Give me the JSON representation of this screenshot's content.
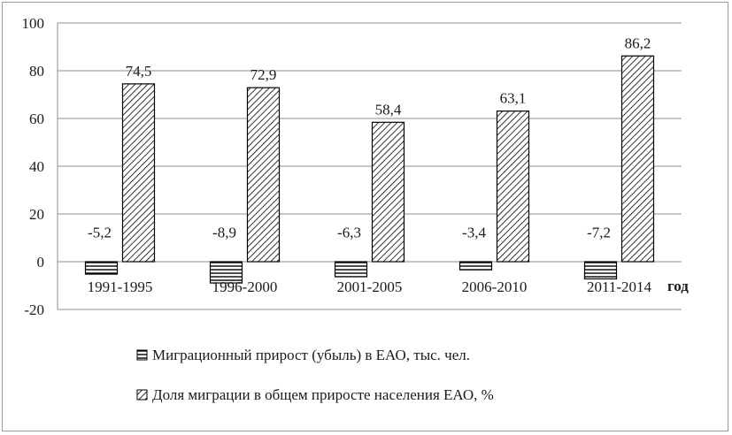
{
  "chart_data": {
    "type": "bar",
    "categories": [
      "1991-1995",
      "1996-2000",
      "2001-2005",
      "2006-2010",
      "2011-2014"
    ],
    "series": [
      {
        "name": "Миграционный прирост (убыль) в ЕАО, тыс. чел.",
        "values": [
          -5.2,
          -8.9,
          -6.3,
          -3.4,
          -7.2
        ],
        "labels": [
          "-5,2",
          "-8,9",
          "-6,3",
          "-3,4",
          "-7,2"
        ],
        "pattern": "horizontal-lines"
      },
      {
        "name": "Доля миграции в общем приросте населения ЕАО, %",
        "values": [
          74.5,
          72.9,
          58.4,
          63.1,
          86.2
        ],
        "labels": [
          "74,5",
          "72,9",
          "58,4",
          "63,1",
          "86,2"
        ],
        "pattern": "diagonal-hatch"
      }
    ],
    "yticks": [
      "100",
      "80",
      "60",
      "40",
      "20",
      "0",
      "-20"
    ],
    "ytick_values": [
      100,
      80,
      60,
      40,
      20,
      0,
      -20
    ],
    "ylim": [
      -20,
      100
    ],
    "xlabel": "год",
    "ylabel": "",
    "title": "",
    "grid": true,
    "legend_position": "bottom"
  }
}
